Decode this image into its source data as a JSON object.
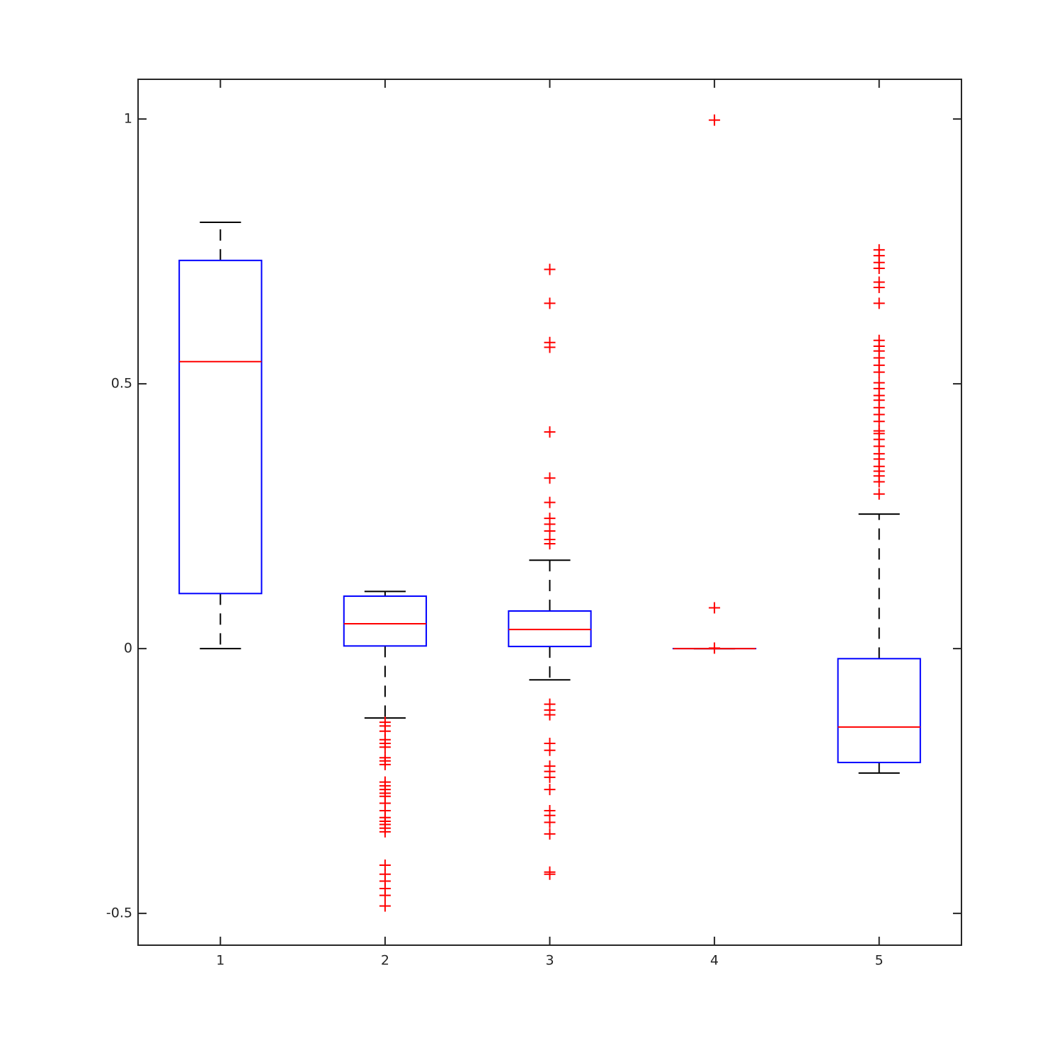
{
  "chart_data": {
    "type": "box",
    "xlim": [
      0.5,
      5.5
    ],
    "xticks": [
      1,
      2,
      3,
      4,
      5
    ],
    "ylim": [
      -0.56,
      1.075
    ],
    "yticks": [
      -0.5,
      0,
      0.5,
      1
    ],
    "box_color": "#0000ff",
    "median_color": "#ff0000",
    "whisker_color": "#000000",
    "outlier_color": "#ff0000",
    "boxes": [
      {
        "whisker_low": 0,
        "q1": 0.104,
        "median": 0.542,
        "q3": 0.733,
        "whisker_high": 0.805,
        "outliers": []
      },
      {
        "whisker_low": -0.131,
        "q1": 0.005,
        "median": 0.047,
        "q3": 0.099,
        "whisker_high": 0.108,
        "outliers": [
          -0.139,
          -0.146,
          -0.156,
          -0.172,
          -0.179,
          -0.186,
          -0.206,
          -0.212,
          -0.219,
          -0.252,
          -0.259,
          -0.266,
          -0.273,
          -0.279,
          -0.292,
          -0.306,
          -0.319,
          -0.326,
          -0.332,
          -0.339,
          -0.346,
          -0.409,
          -0.426,
          -0.439,
          -0.453,
          -0.466,
          -0.486
        ]
      },
      {
        "whisker_low": -0.059,
        "q1": 0.004,
        "median": 0.036,
        "q3": 0.071,
        "whisker_high": 0.167,
        "outliers": [
          0.716,
          0.652,
          0.578,
          0.569,
          0.409,
          0.322,
          0.276,
          0.246,
          0.235,
          0.222,
          0.206,
          0.198,
          -0.105,
          -0.116,
          -0.125,
          -0.179,
          -0.192,
          -0.222,
          -0.232,
          -0.243,
          -0.266,
          -0.306,
          -0.315,
          -0.328,
          -0.35,
          -0.422,
          -0.426
        ]
      },
      {
        "whisker_low": 0,
        "q1": 0,
        "median": 0,
        "q3": 0,
        "whisker_high": 0,
        "outliers": [
          0.998,
          0.077,
          0.001
        ]
      },
      {
        "whisker_low": -0.235,
        "q1": -0.215,
        "median": -0.148,
        "q3": -0.019,
        "whisker_high": 0.254,
        "outliers": [
          0.753,
          0.742,
          0.729,
          0.718,
          0.692,
          0.682,
          0.652,
          0.582,
          0.571,
          0.562,
          0.549,
          0.535,
          0.522,
          0.502,
          0.491,
          0.478,
          0.469,
          0.455,
          0.442,
          0.429,
          0.411,
          0.406,
          0.395,
          0.382,
          0.368,
          0.358,
          0.344,
          0.335,
          0.326,
          0.315,
          0.292
        ]
      }
    ]
  }
}
